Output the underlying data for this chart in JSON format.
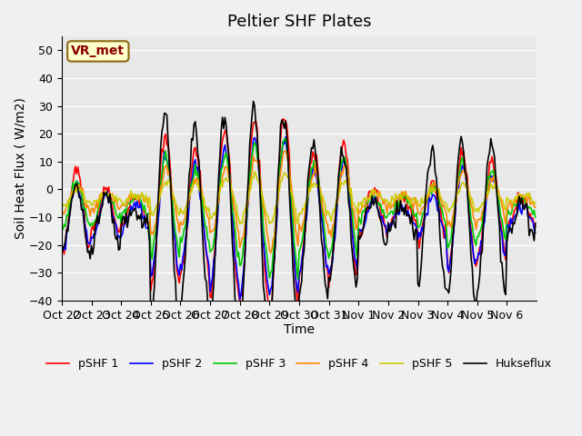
{
  "title": "Peltier SHF Plates",
  "xlabel": "Time",
  "ylabel": "Soil Heat Flux ( W/m2)",
  "ylim": [
    -40,
    55
  ],
  "xlim_labels": [
    "Oct 22",
    "Oct 23",
    "Oct 24",
    "Oct 25",
    "Oct 26",
    "Oct 27",
    "Oct 28",
    "Oct 29",
    "Oct 30",
    "Oct 31",
    "Nov 1",
    "Nov 2",
    "Nov 3",
    "Nov 4",
    "Nov 5",
    "Nov 6"
  ],
  "annotation_text": "VR_met",
  "annotation_bg": "#FFFFCC",
  "annotation_border": "#8B6914",
  "legend_entries": [
    "pSHF 1",
    "pSHF 2",
    "pSHF 3",
    "pSHF 4",
    "pSHF 5",
    "Hukseflux"
  ],
  "colors": [
    "#FF0000",
    "#0000FF",
    "#00CC00",
    "#FF8800",
    "#CCCC00",
    "#000000"
  ],
  "background_color": "#E8E8E8",
  "grid_color": "#FFFFFF",
  "title_fontsize": 13,
  "axis_fontsize": 10,
  "tick_fontsize": 9
}
